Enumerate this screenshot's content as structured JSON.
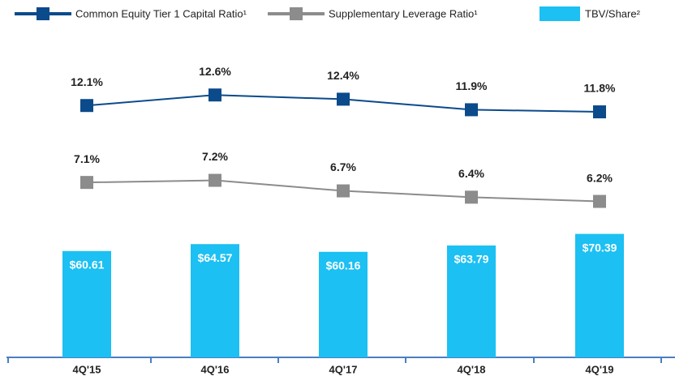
{
  "chart_data": {
    "type": "bar_line",
    "categories": [
      "4Q'15",
      "4Q'16",
      "4Q'17",
      "4Q'18",
      "4Q'19"
    ],
    "series": [
      {
        "name": "Common Equity Tier 1 Capital Ratio¹",
        "type": "line",
        "color": "#0b4a8b",
        "ylim": [
          0.15,
          14.8
        ],
        "values": [
          12.1,
          12.6,
          12.4,
          11.9,
          11.8
        ],
        "value_labels": [
          "12.1%",
          "12.6%",
          "12.4%",
          "11.9%",
          "11.8%"
        ]
      },
      {
        "name": "Supplementary Leverage Ratio¹",
        "type": "line",
        "color": "#8c8c8c",
        "ylim": [
          -1.2,
          13.45
        ],
        "values": [
          7.1,
          7.2,
          6.7,
          6.4,
          6.2
        ],
        "value_labels": [
          "7.1%",
          "7.2%",
          "6.7%",
          "6.4%",
          "6.2%"
        ]
      },
      {
        "name": "TBV/Share²",
        "type": "bar",
        "color": "#1cc0f2",
        "ylim": [
          0,
          176
        ],
        "values": [
          60.61,
          64.57,
          60.16,
          63.79,
          70.39
        ],
        "value_labels": [
          "$60.61",
          "$64.57",
          "$60.16",
          "$63.79",
          "$70.39"
        ]
      }
    ]
  }
}
